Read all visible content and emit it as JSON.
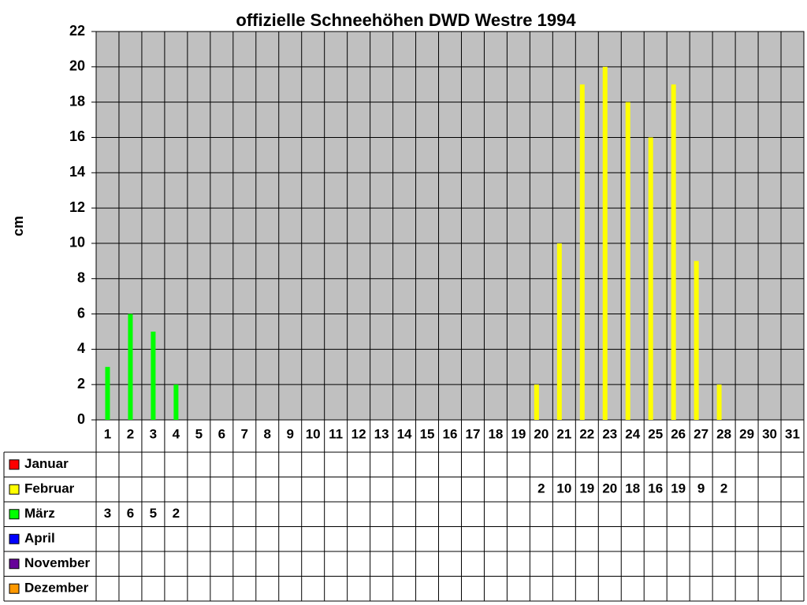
{
  "chart_data": {
    "type": "bar",
    "title": "offizielle Schneehöhen DWD Westre 1994",
    "y_label": "cm",
    "categories": [
      "1",
      "2",
      "3",
      "4",
      "5",
      "6",
      "7",
      "8",
      "9",
      "10",
      "11",
      "12",
      "13",
      "14",
      "15",
      "16",
      "17",
      "18",
      "19",
      "20",
      "21",
      "22",
      "23",
      "24",
      "25",
      "26",
      "27",
      "28",
      "29",
      "30",
      "31"
    ],
    "ylim": [
      0,
      22
    ],
    "yticks": [
      0,
      2,
      4,
      6,
      8,
      10,
      12,
      14,
      16,
      18,
      20,
      22
    ],
    "grid": true,
    "series": [
      {
        "name": "Januar",
        "color": "#ff0000",
        "values": [
          null,
          null,
          null,
          null,
          null,
          null,
          null,
          null,
          null,
          null,
          null,
          null,
          null,
          null,
          null,
          null,
          null,
          null,
          null,
          null,
          null,
          null,
          null,
          null,
          null,
          null,
          null,
          null,
          null,
          null,
          null
        ]
      },
      {
        "name": "Februar",
        "color": "#ffff00",
        "values": [
          null,
          null,
          null,
          null,
          null,
          null,
          null,
          null,
          null,
          null,
          null,
          null,
          null,
          null,
          null,
          null,
          null,
          null,
          null,
          2,
          10,
          19,
          20,
          18,
          16,
          19,
          9,
          2,
          null,
          null,
          null
        ]
      },
      {
        "name": "März",
        "color": "#00ff00",
        "values": [
          3,
          6,
          5,
          2,
          null,
          null,
          null,
          null,
          null,
          null,
          null,
          null,
          null,
          null,
          null,
          null,
          null,
          null,
          null,
          null,
          null,
          null,
          null,
          null,
          null,
          null,
          null,
          null,
          null,
          null,
          null
        ]
      },
      {
        "name": "April",
        "color": "#0000ff",
        "values": [
          null,
          null,
          null,
          null,
          null,
          null,
          null,
          null,
          null,
          null,
          null,
          null,
          null,
          null,
          null,
          null,
          null,
          null,
          null,
          null,
          null,
          null,
          null,
          null,
          null,
          null,
          null,
          null,
          null,
          null,
          null
        ]
      },
      {
        "name": "November",
        "color": "#660099",
        "values": [
          null,
          null,
          null,
          null,
          null,
          null,
          null,
          null,
          null,
          null,
          null,
          null,
          null,
          null,
          null,
          null,
          null,
          null,
          null,
          null,
          null,
          null,
          null,
          null,
          null,
          null,
          null,
          null,
          null,
          null,
          null
        ]
      },
      {
        "name": "Dezember",
        "color": "#ff9900",
        "values": [
          null,
          null,
          null,
          null,
          null,
          null,
          null,
          null,
          null,
          null,
          null,
          null,
          null,
          null,
          null,
          null,
          null,
          null,
          null,
          null,
          null,
          null,
          null,
          null,
          null,
          null,
          null,
          null,
          null,
          null,
          null
        ]
      }
    ]
  }
}
